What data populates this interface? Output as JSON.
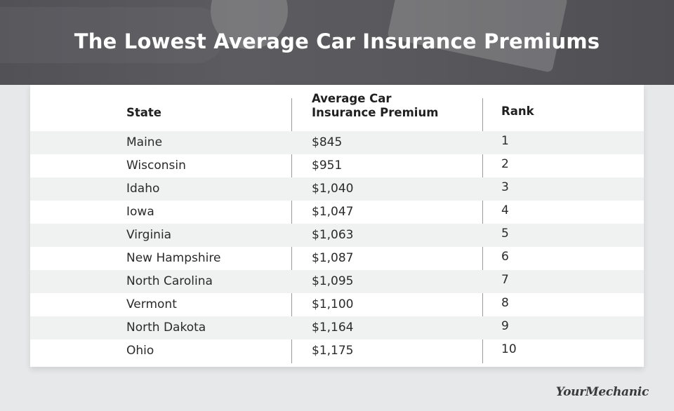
{
  "title": "The Lowest Average Car Insurance Premiums",
  "table": {
    "headers": {
      "state": "State",
      "premium_line1": "Average Car",
      "premium_line2": "Insurance Premium",
      "rank": "Rank"
    },
    "rows": [
      {
        "state": "Maine",
        "premium": "$845",
        "rank": "1"
      },
      {
        "state": "Wisconsin",
        "premium": "$951",
        "rank": "2"
      },
      {
        "state": "Idaho",
        "premium": "$1,040",
        "rank": "3"
      },
      {
        "state": "Iowa",
        "premium": "$1,047",
        "rank": "4"
      },
      {
        "state": "Virginia",
        "premium": "$1,063",
        "rank": "5"
      },
      {
        "state": "New Hampshire",
        "premium": "$1,087",
        "rank": "6"
      },
      {
        "state": "North Carolina",
        "premium": "$1,095",
        "rank": "7"
      },
      {
        "state": "Vermont",
        "premium": "$1,100",
        "rank": "8"
      },
      {
        "state": "North Dakota",
        "premium": "$1,164",
        "rank": "9"
      },
      {
        "state": "Ohio",
        "premium": "$1,175",
        "rank": "10"
      }
    ]
  },
  "logo": "YourMechanic",
  "colors": {
    "header_bg": "#56565a",
    "page_bg": "#e6e8e9",
    "stripe": "#f0f1f1",
    "text": "#2a2a2a"
  }
}
